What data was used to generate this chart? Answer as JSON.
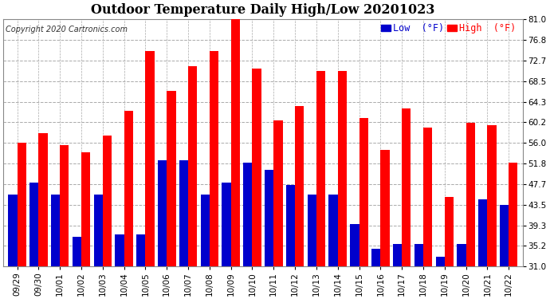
{
  "title": "Outdoor Temperature Daily High/Low 20201023",
  "copyright": "Copyright 2020 Cartronics.com",
  "legend_low": "Low  (°F)",
  "legend_high": "High  (°F)",
  "dates": [
    "09/29",
    "09/30",
    "10/01",
    "10/02",
    "10/03",
    "10/04",
    "10/05",
    "10/06",
    "10/07",
    "10/08",
    "10/09",
    "10/10",
    "10/11",
    "10/12",
    "10/13",
    "10/14",
    "10/15",
    "10/16",
    "10/17",
    "10/18",
    "10/19",
    "10/20",
    "10/21",
    "10/22"
  ],
  "highs": [
    56.0,
    58.0,
    55.5,
    54.0,
    57.5,
    62.5,
    74.5,
    66.5,
    71.5,
    74.5,
    81.0,
    71.0,
    60.5,
    63.5,
    70.5,
    70.5,
    61.0,
    54.5,
    63.0,
    59.0,
    45.0,
    60.0,
    59.5,
    52.0
  ],
  "lows": [
    45.5,
    48.0,
    45.5,
    37.0,
    45.5,
    37.5,
    37.5,
    52.5,
    52.5,
    45.5,
    48.0,
    52.0,
    50.5,
    47.5,
    45.5,
    45.5,
    39.5,
    34.5,
    35.5,
    35.5,
    33.0,
    35.5,
    44.5,
    43.5
  ],
  "ymin": 31.0,
  "ylim": [
    31.0,
    81.0
  ],
  "yticks": [
    31.0,
    35.2,
    39.3,
    43.5,
    47.7,
    51.8,
    56.0,
    60.2,
    64.3,
    68.5,
    72.7,
    76.8,
    81.0
  ],
  "bar_width": 0.42,
  "high_color": "#ff0000",
  "low_color": "#0000cc",
  "bg_color": "#ffffff",
  "grid_color": "#aaaaaa",
  "title_fontsize": 11.5,
  "tick_fontsize": 7.5,
  "copyright_fontsize": 7.0
}
